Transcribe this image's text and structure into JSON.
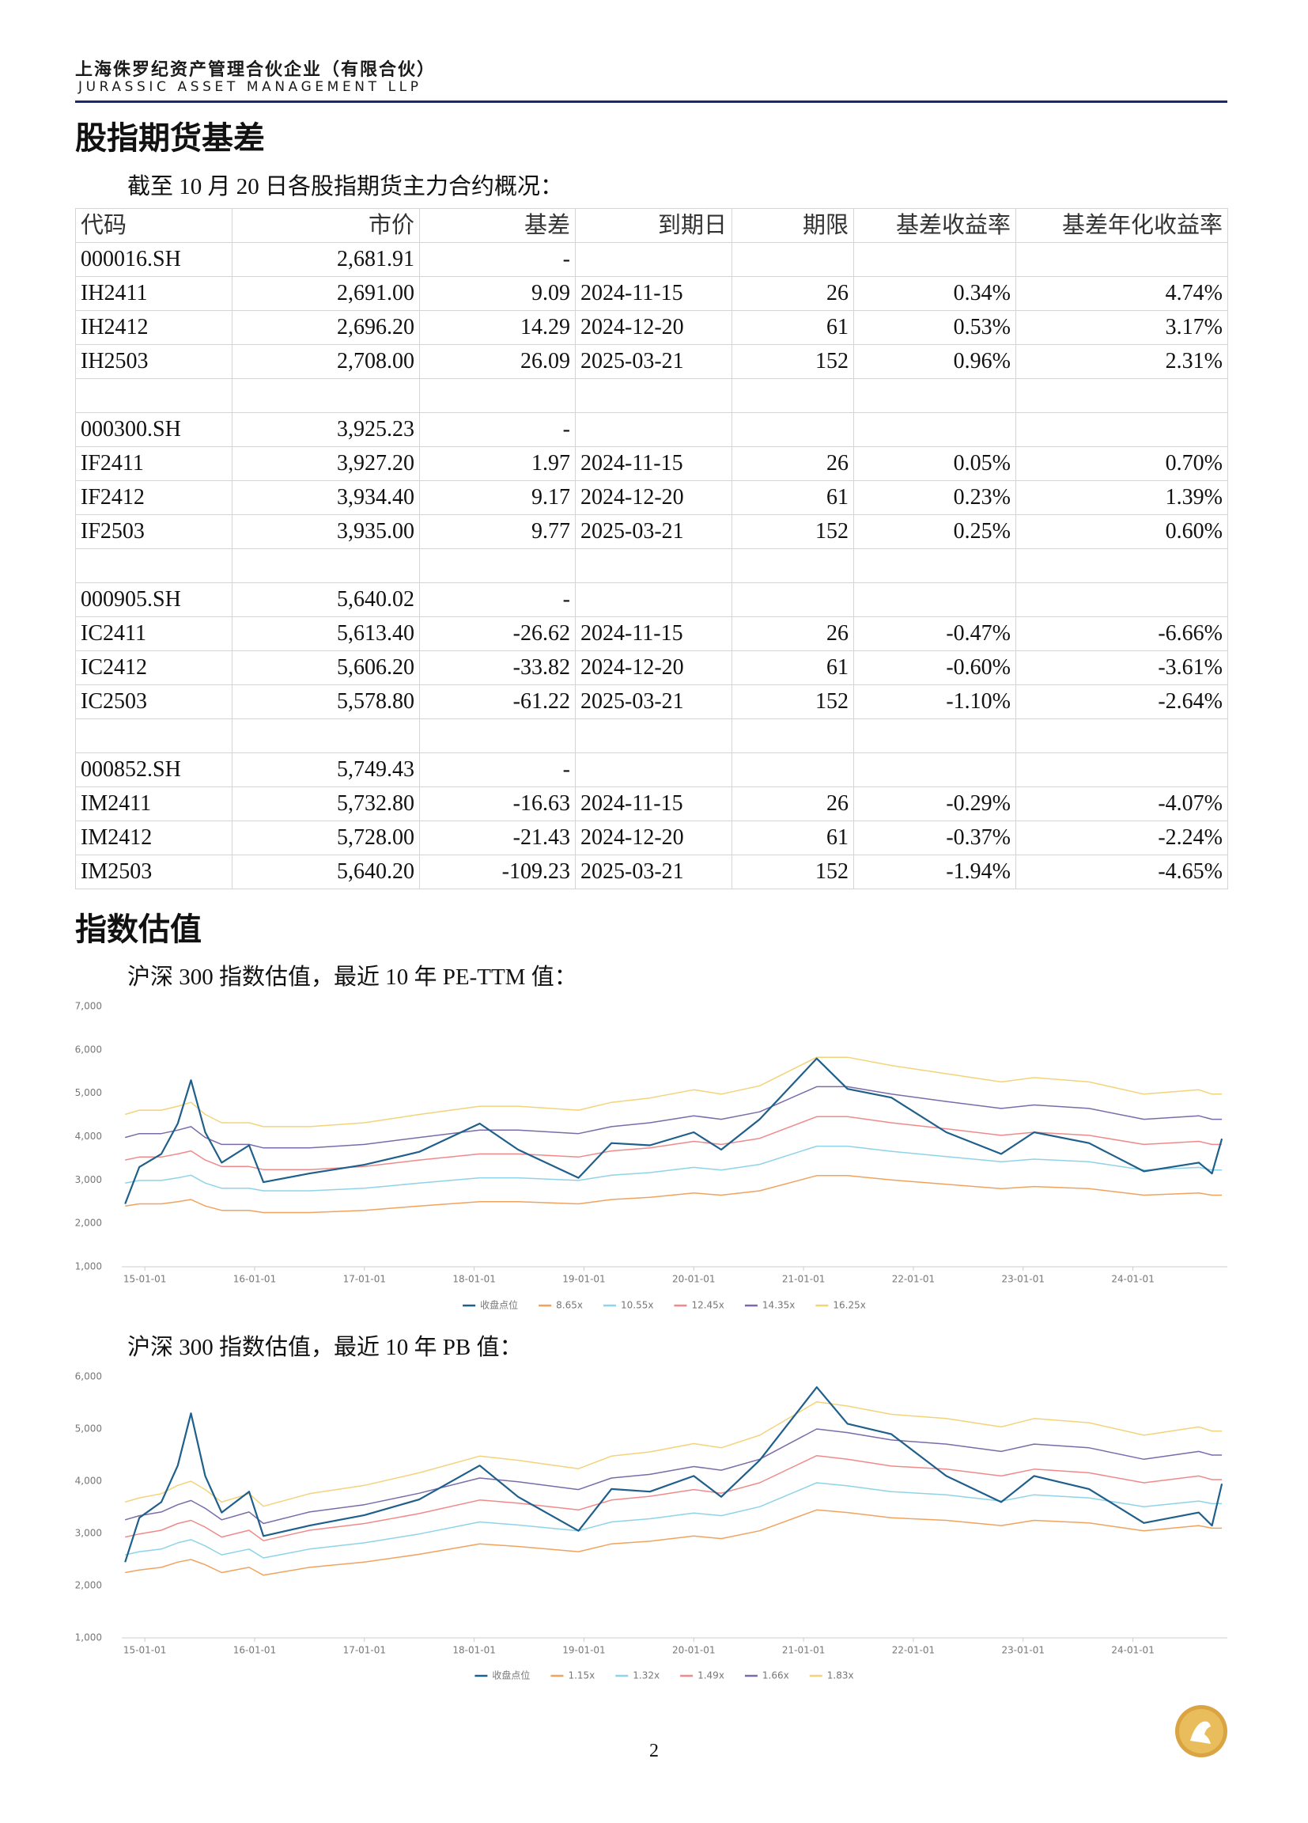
{
  "header": {
    "company": "上海侏罗纪资产管理合伙企业（有限合伙）",
    "company_en": "JURASSIC ASSET MANAGEMENT LLP"
  },
  "section1": {
    "title": "股指期货基差",
    "intro": "截至 10 月 20 日各股指期货主力合约概况：",
    "table": {
      "columns": [
        "代码",
        "市价",
        "基差",
        "到期日",
        "期限",
        "基差收益率",
        "基差年化收益率"
      ],
      "groups": [
        [
          [
            "000016.SH",
            "2,681.91",
            "-"
          ],
          [
            "IH2411",
            "2,691.00",
            "9.09",
            "2024-11-15",
            "26",
            "0.34%",
            "4.74%"
          ],
          [
            "IH2412",
            "2,696.20",
            "14.29",
            "2024-12-20",
            "61",
            "0.53%",
            "3.17%"
          ],
          [
            "IH2503",
            "2,708.00",
            "26.09",
            "2025-03-21",
            "152",
            "0.96%",
            "2.31%"
          ]
        ],
        [
          [
            "000300.SH",
            "3,925.23",
            "-"
          ],
          [
            "IF2411",
            "3,927.20",
            "1.97",
            "2024-11-15",
            "26",
            "0.05%",
            "0.70%"
          ],
          [
            "IF2412",
            "3,934.40",
            "9.17",
            "2024-12-20",
            "61",
            "0.23%",
            "1.39%"
          ],
          [
            "IF2503",
            "3,935.00",
            "9.77",
            "2025-03-21",
            "152",
            "0.25%",
            "0.60%"
          ]
        ],
        [
          [
            "000905.SH",
            "5,640.02",
            "-"
          ],
          [
            "IC2411",
            "5,613.40",
            "-26.62",
            "2024-11-15",
            "26",
            "-0.47%",
            "-6.66%"
          ],
          [
            "IC2412",
            "5,606.20",
            "-33.82",
            "2024-12-20",
            "61",
            "-0.60%",
            "-3.61%"
          ],
          [
            "IC2503",
            "5,578.80",
            "-61.22",
            "2025-03-21",
            "152",
            "-1.10%",
            "-2.64%"
          ]
        ],
        [
          [
            "000852.SH",
            "5,749.43",
            "-"
          ],
          [
            "IM2411",
            "5,732.80",
            "-16.63",
            "2024-11-15",
            "26",
            "-0.29%",
            "-4.07%"
          ],
          [
            "IM2412",
            "5,728.00",
            "-21.43",
            "2024-12-20",
            "61",
            "-0.37%",
            "-2.24%"
          ],
          [
            "IM2503",
            "5,640.20",
            "-109.23",
            "2025-03-21",
            "152",
            "-1.94%",
            "-4.65%"
          ]
        ]
      ]
    }
  },
  "section2": {
    "title": "指数估值",
    "captions": [
      "沪深 300 指数估值，最近 10 年 PE-TTM 值：",
      "沪深 300 指数估值，最近 10 年 PB 值："
    ]
  },
  "chart_data": [
    {
      "type": "line",
      "x": [
        2014.82,
        2014.95,
        2015.15,
        2015.3,
        2015.42,
        2015.55,
        2015.7,
        2015.95,
        2016.08,
        2016.5,
        2017.0,
        2017.5,
        2018.05,
        2018.4,
        2018.95,
        2019.25,
        2019.6,
        2020.0,
        2020.25,
        2020.6,
        2021.12,
        2021.4,
        2021.8,
        2022.3,
        2022.8,
        2023.1,
        2023.6,
        2024.1,
        2024.6,
        2024.72,
        2024.81
      ],
      "xlim": [
        2014.79,
        2024.86
      ],
      "xticks": [
        {
          "value": 2015,
          "label": "15-01-01"
        },
        {
          "value": 2016,
          "label": "16-01-01"
        },
        {
          "value": 2017,
          "label": "17-01-01"
        },
        {
          "value": 2018,
          "label": "18-01-01"
        },
        {
          "value": 2019,
          "label": "19-01-01"
        },
        {
          "value": 2020,
          "label": "20-01-01"
        },
        {
          "value": 2021,
          "label": "21-01-01"
        },
        {
          "value": 2022,
          "label": "22-01-01"
        },
        {
          "value": 2023,
          "label": "23-01-01"
        },
        {
          "value": 2024,
          "label": "24-01-01"
        }
      ],
      "ylim": [
        1000,
        7000
      ],
      "yticks": [
        {
          "value": 1000,
          "label": "1,000"
        },
        {
          "value": 2000,
          "label": "2,000"
        },
        {
          "value": 3000,
          "label": "3,000"
        },
        {
          "value": 4000,
          "label": "4,000"
        },
        {
          "value": 5000,
          "label": "5,000"
        },
        {
          "value": 6000,
          "label": "6,000"
        },
        {
          "value": 7000,
          "label": "7,000"
        }
      ],
      "grid": false,
      "series": [
        {
          "name": "收盘点位",
          "color": "#1f5f8b",
          "values": [
            2450,
            3300,
            3600,
            4300,
            5300,
            4100,
            3400,
            3800,
            2950,
            3150,
            3350,
            3650,
            4300,
            3700,
            3050,
            3850,
            3800,
            4100,
            3700,
            4400,
            5800,
            5100,
            4900,
            4100,
            3600,
            4100,
            3850,
            3200,
            3400,
            3150,
            3950
          ]
        },
        {
          "name": "8.65x",
          "color": "#f0a35e",
          "values": [
            2400,
            2450,
            2450,
            2500,
            2550,
            2400,
            2300,
            2300,
            2250,
            2250,
            2300,
            2400,
            2500,
            2500,
            2450,
            2550,
            2600,
            2700,
            2650,
            2750,
            3100,
            3100,
            3000,
            2900,
            2800,
            2850,
            2800,
            2650,
            2700,
            2650,
            2650
          ]
        },
        {
          "name": "10.55x",
          "color": "#8fd3e8",
          "values": [
            2930,
            2990,
            2990,
            3050,
            3110,
            2930,
            2810,
            2810,
            2750,
            2750,
            2810,
            2930,
            3050,
            3050,
            2990,
            3110,
            3170,
            3290,
            3230,
            3360,
            3780,
            3780,
            3660,
            3540,
            3420,
            3480,
            3420,
            3230,
            3290,
            3230,
            3230
          ]
        },
        {
          "name": "12.45x",
          "color": "#f08a8a",
          "values": [
            3460,
            3530,
            3530,
            3600,
            3670,
            3460,
            3310,
            3310,
            3240,
            3240,
            3310,
            3460,
            3600,
            3600,
            3530,
            3670,
            3740,
            3890,
            3820,
            3960,
            4460,
            4460,
            4320,
            4180,
            4030,
            4100,
            4030,
            3820,
            3890,
            3820,
            3820
          ]
        },
        {
          "name": "14.35x",
          "color": "#7b6ba8",
          "values": [
            3980,
            4070,
            4070,
            4150,
            4230,
            3980,
            3820,
            3820,
            3740,
            3740,
            3820,
            3980,
            4150,
            4150,
            4070,
            4230,
            4320,
            4480,
            4400,
            4570,
            5150,
            5150,
            4980,
            4810,
            4650,
            4730,
            4650,
            4400,
            4480,
            4400,
            4400
          ]
        },
        {
          "name": "16.25x",
          "color": "#f3d37a",
          "values": [
            4510,
            4610,
            4610,
            4700,
            4790,
            4510,
            4320,
            4320,
            4230,
            4230,
            4320,
            4510,
            4700,
            4700,
            4610,
            4790,
            4890,
            5080,
            4980,
            5170,
            5830,
            5830,
            5640,
            5450,
            5260,
            5360,
            5260,
            4980,
            5080,
            4980,
            4980
          ]
        }
      ]
    },
    {
      "type": "line",
      "x": [
        2014.82,
        2014.95,
        2015.15,
        2015.3,
        2015.42,
        2015.55,
        2015.7,
        2015.95,
        2016.08,
        2016.5,
        2017.0,
        2017.5,
        2018.05,
        2018.4,
        2018.95,
        2019.25,
        2019.6,
        2020.0,
        2020.25,
        2020.6,
        2021.12,
        2021.4,
        2021.8,
        2022.3,
        2022.8,
        2023.1,
        2023.6,
        2024.1,
        2024.6,
        2024.72,
        2024.81
      ],
      "xlim": [
        2014.79,
        2024.86
      ],
      "xticks": [
        {
          "value": 2015,
          "label": "15-01-01"
        },
        {
          "value": 2016,
          "label": "16-01-01"
        },
        {
          "value": 2017,
          "label": "17-01-01"
        },
        {
          "value": 2018,
          "label": "18-01-01"
        },
        {
          "value": 2019,
          "label": "19-01-01"
        },
        {
          "value": 2020,
          "label": "20-01-01"
        },
        {
          "value": 2021,
          "label": "21-01-01"
        },
        {
          "value": 2022,
          "label": "22-01-01"
        },
        {
          "value": 2023,
          "label": "23-01-01"
        },
        {
          "value": 2024,
          "label": "24-01-01"
        }
      ],
      "ylim": [
        1000,
        6000
      ],
      "yticks": [
        {
          "value": 1000,
          "label": "1,000"
        },
        {
          "value": 2000,
          "label": "2,000"
        },
        {
          "value": 3000,
          "label": "3,000"
        },
        {
          "value": 4000,
          "label": "4,000"
        },
        {
          "value": 5000,
          "label": "5,000"
        },
        {
          "value": 6000,
          "label": "6,000"
        }
      ],
      "grid": false,
      "series": [
        {
          "name": "收盘点位",
          "color": "#1f5f8b",
          "values": [
            2450,
            3300,
            3600,
            4300,
            5300,
            4100,
            3400,
            3800,
            2950,
            3150,
            3350,
            3650,
            4300,
            3700,
            3050,
            3850,
            3800,
            4100,
            3700,
            4400,
            5800,
            5100,
            4900,
            4100,
            3600,
            4100,
            3850,
            3200,
            3400,
            3150,
            3950
          ]
        },
        {
          "name": "1.15x",
          "color": "#f0a35e",
          "values": [
            2250,
            2300,
            2350,
            2450,
            2500,
            2400,
            2250,
            2350,
            2200,
            2350,
            2450,
            2600,
            2800,
            2750,
            2650,
            2800,
            2850,
            2950,
            2900,
            3050,
            3450,
            3400,
            3300,
            3250,
            3150,
            3250,
            3200,
            3050,
            3150,
            3100,
            3100
          ]
        },
        {
          "name": "1.32x",
          "color": "#8fd3e8",
          "values": [
            2590,
            2650,
            2700,
            2820,
            2880,
            2760,
            2590,
            2700,
            2530,
            2700,
            2820,
            2990,
            3220,
            3160,
            3050,
            3220,
            3280,
            3390,
            3340,
            3510,
            3970,
            3910,
            3800,
            3740,
            3620,
            3740,
            3680,
            3510,
            3620,
            3570,
            3570
          ]
        },
        {
          "name": "1.49x",
          "color": "#f08a8a",
          "values": [
            2930,
            2990,
            3060,
            3190,
            3250,
            3120,
            2930,
            3060,
            2860,
            3060,
            3190,
            3380,
            3640,
            3580,
            3450,
            3640,
            3710,
            3840,
            3770,
            3970,
            4490,
            4420,
            4290,
            4230,
            4100,
            4230,
            4160,
            3970,
            4100,
            4030,
            4030
          ]
        },
        {
          "name": "1.66x",
          "color": "#7b6ba8",
          "values": [
            3260,
            3340,
            3410,
            3550,
            3630,
            3480,
            3260,
            3410,
            3190,
            3410,
            3550,
            3770,
            4060,
            3990,
            3840,
            4060,
            4130,
            4280,
            4210,
            4420,
            5000,
            4930,
            4790,
            4710,
            4570,
            4710,
            4640,
            4420,
            4570,
            4500,
            4500
          ]
        },
        {
          "name": "1.83x",
          "color": "#f3d37a",
          "values": [
            3600,
            3680,
            3760,
            3920,
            4000,
            3840,
            3600,
            3760,
            3520,
            3760,
            3920,
            4160,
            4480,
            4400,
            4240,
            4480,
            4560,
            4720,
            4640,
            4880,
            5520,
            5440,
            5280,
            5200,
            5040,
            5200,
            5120,
            4880,
            5040,
            4960,
            4960
          ]
        }
      ]
    }
  ],
  "page_number": "2"
}
